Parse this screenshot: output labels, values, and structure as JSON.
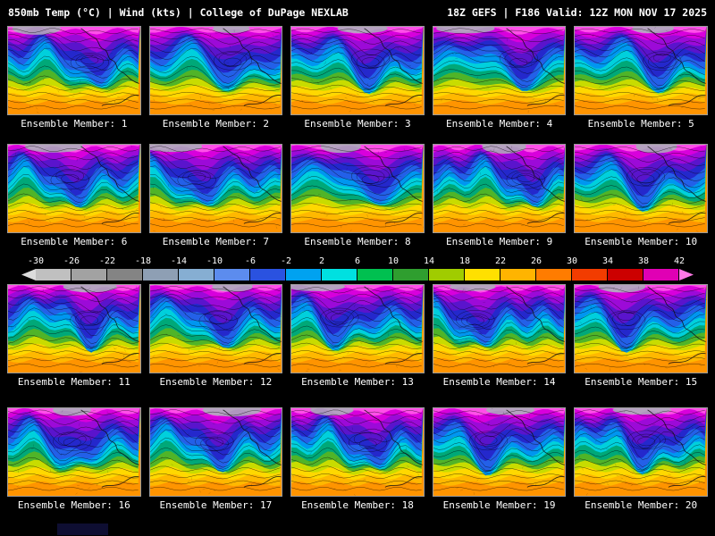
{
  "header": {
    "left": "850mb Temp (°C) | Wind (kts) | College of DuPage NEXLAB",
    "right": "18Z GEFS | F186 Valid: 12Z MON NOV 17 2025"
  },
  "panels": [
    {
      "id": 1,
      "label": "Ensemble Member: 1"
    },
    {
      "id": 2,
      "label": "Ensemble Member: 2"
    },
    {
      "id": 3,
      "label": "Ensemble Member: 3"
    },
    {
      "id": 4,
      "label": "Ensemble Member: 4"
    },
    {
      "id": 5,
      "label": "Ensemble Member: 5"
    },
    {
      "id": 6,
      "label": "Ensemble Member: 6"
    },
    {
      "id": 7,
      "label": "Ensemble Member: 7"
    },
    {
      "id": 8,
      "label": "Ensemble Member: 8"
    },
    {
      "id": 9,
      "label": "Ensemble Member: 9"
    },
    {
      "id": 10,
      "label": "Ensemble Member: 10"
    },
    {
      "id": 11,
      "label": "Ensemble Member: 11"
    },
    {
      "id": 12,
      "label": "Ensemble Member: 12"
    },
    {
      "id": 13,
      "label": "Ensemble Member: 13"
    },
    {
      "id": 14,
      "label": "Ensemble Member: 14"
    },
    {
      "id": 15,
      "label": "Ensemble Member: 15"
    },
    {
      "id": 16,
      "label": "Ensemble Member: 16"
    },
    {
      "id": 17,
      "label": "Ensemble Member: 17"
    },
    {
      "id": 18,
      "label": "Ensemble Member: 18"
    },
    {
      "id": 19,
      "label": "Ensemble Member: 19"
    },
    {
      "id": 20,
      "label": "Ensemble Member: 20"
    }
  ],
  "colorbar": {
    "units": "°C",
    "tick_labels": [
      "-30",
      "-26",
      "-22",
      "-18",
      "-14",
      "-10",
      "-6",
      "-2",
      "2",
      "6",
      "10",
      "14",
      "18",
      "22",
      "26",
      "30",
      "34",
      "38",
      "42"
    ],
    "segment_colors": [
      "#c0c0c0",
      "#a2a2a2",
      "#848484",
      "#8e9fb4",
      "#86aed2",
      "#5c8cee",
      "#2a52e0",
      "#00a2f0",
      "#00e0e0",
      "#00c050",
      "#2f9e2f",
      "#a0cc00",
      "#ffe000",
      "#ffb400",
      "#ff7c00",
      "#f23c00",
      "#cc0000",
      "#e000b4"
    ],
    "left_arrow_color": "#dcdcdc",
    "right_arrow_color": "#ff78e6"
  },
  "map_palette": {
    "bottom": "#ff9400",
    "band_bases": [
      88,
      80,
      73,
      67,
      61,
      54,
      47,
      40,
      32,
      24,
      17,
      10,
      4
    ],
    "bands": [
      "#ffb800",
      "#ffd800",
      "#c8dc00",
      "#50b428",
      "#00a878",
      "#00d0dc",
      "#0096f0",
      "#2360e8",
      "#2428cc",
      "#5a14cc",
      "#9c0ad8",
      "#d800dc",
      "#ff50e8"
    ],
    "contour_color": "#000000",
    "coast_color": "#101010",
    "polar_gray": "#a8b0b8"
  }
}
